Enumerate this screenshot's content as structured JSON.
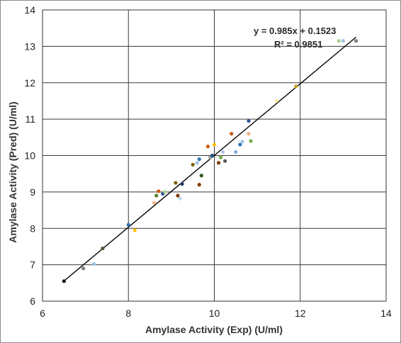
{
  "chart_data": {
    "type": "scatter",
    "title": "",
    "xlabel": "Amylase Activity (Exp) (U/ml)",
    "ylabel": "Amylase Activity (Pred) (U/ml)",
    "xlim": [
      6,
      14
    ],
    "ylim": [
      6,
      14
    ],
    "x_ticks": [
      6,
      8,
      10,
      12,
      14
    ],
    "y_ticks": [
      6,
      7,
      8,
      9,
      10,
      11,
      12,
      13,
      14
    ],
    "x_tick_labels": [
      "6",
      "8",
      "10",
      "12",
      "14"
    ],
    "y_tick_labels": [
      "6",
      "7",
      "8",
      "9",
      "10",
      "11",
      "12",
      "13",
      "14"
    ],
    "grid": true,
    "legend": "none",
    "trendline": {
      "slope": 0.985,
      "intercept": 0.1523,
      "x_range": [
        6.5,
        13.3
      ],
      "equation_label": "y = 0.985x + 0.1523",
      "r2_label": "R² = 0.9851"
    },
    "points": [
      {
        "x": 6.5,
        "y": 6.55,
        "color": "#1a1a1a"
      },
      {
        "x": 6.95,
        "y": 6.9,
        "color": "#7f7f7f"
      },
      {
        "x": 7.2,
        "y": 7.02,
        "color": "#9dc3e6"
      },
      {
        "x": 7.4,
        "y": 7.45,
        "color": "#4d5a3a"
      },
      {
        "x": 8.0,
        "y": 8.1,
        "color": "#2e75b6"
      },
      {
        "x": 8.15,
        "y": 7.95,
        "color": "#ffc000"
      },
      {
        "x": 8.6,
        "y": 8.7,
        "color": "#f4b183"
      },
      {
        "x": 8.65,
        "y": 8.9,
        "color": "#548235"
      },
      {
        "x": 8.7,
        "y": 9.02,
        "color": "#c55a11"
      },
      {
        "x": 8.8,
        "y": 8.95,
        "color": "#2f5597"
      },
      {
        "x": 8.85,
        "y": 9.0,
        "color": "#a9d18e"
      },
      {
        "x": 9.1,
        "y": 9.25,
        "color": "#806000"
      },
      {
        "x": 9.15,
        "y": 8.9,
        "color": "#843c0c"
      },
      {
        "x": 9.2,
        "y": 8.82,
        "color": "#bdd7ee"
      },
      {
        "x": 9.25,
        "y": 9.22,
        "color": "#203864"
      },
      {
        "x": 9.5,
        "y": 9.75,
        "color": "#7f6000"
      },
      {
        "x": 9.6,
        "y": 9.8,
        "color": "#9dc3e6"
      },
      {
        "x": 9.65,
        "y": 9.9,
        "color": "#2e75b6"
      },
      {
        "x": 9.65,
        "y": 9.2,
        "color": "#843c0c"
      },
      {
        "x": 9.7,
        "y": 9.45,
        "color": "#385723"
      },
      {
        "x": 9.85,
        "y": 10.25,
        "color": "#c55a11"
      },
      {
        "x": 9.9,
        "y": 9.95,
        "color": "#a5a5a5"
      },
      {
        "x": 9.95,
        "y": 10.0,
        "color": "#1f4e79"
      },
      {
        "x": 10.0,
        "y": 10.3,
        "color": "#ffc000"
      },
      {
        "x": 10.1,
        "y": 9.8,
        "color": "#843c0c"
      },
      {
        "x": 10.15,
        "y": 9.95,
        "color": "#70ad47"
      },
      {
        "x": 10.2,
        "y": 10.1,
        "color": "#b4c7e7"
      },
      {
        "x": 10.25,
        "y": 9.85,
        "color": "#595959"
      },
      {
        "x": 10.4,
        "y": 10.6,
        "color": "#c55a11"
      },
      {
        "x": 10.5,
        "y": 10.1,
        "color": "#8faadc"
      },
      {
        "x": 10.6,
        "y": 10.3,
        "color": "#2e75b6"
      },
      {
        "x": 10.65,
        "y": 10.38,
        "color": "#9dc3e6"
      },
      {
        "x": 10.8,
        "y": 10.95,
        "color": "#2f5597"
      },
      {
        "x": 10.8,
        "y": 10.6,
        "color": "#f4b183"
      },
      {
        "x": 10.85,
        "y": 10.4,
        "color": "#70ad47"
      },
      {
        "x": 11.45,
        "y": 11.5,
        "color": "#ffe699"
      },
      {
        "x": 11.9,
        "y": 11.9,
        "color": "#c9a227"
      },
      {
        "x": 12.9,
        "y": 13.15,
        "color": "#a9d18e"
      },
      {
        "x": 13.0,
        "y": 13.15,
        "color": "#9dc3e6"
      },
      {
        "x": 13.3,
        "y": 13.15,
        "color": "#7f7f7f"
      }
    ]
  }
}
